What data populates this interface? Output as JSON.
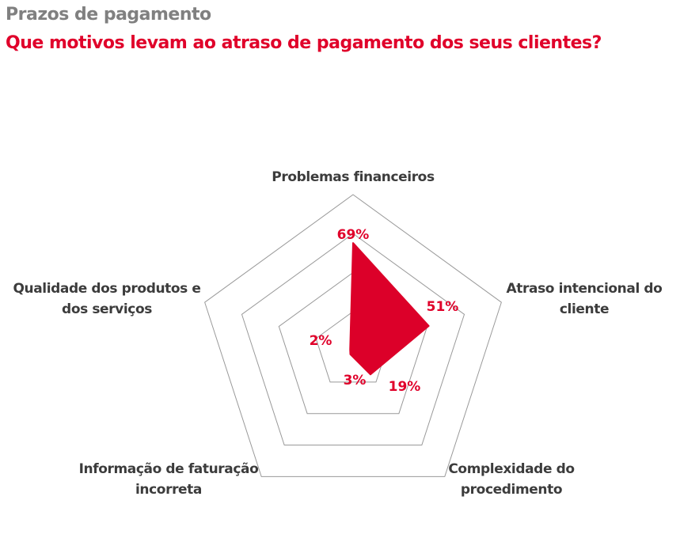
{
  "header": {
    "title": "Prazos de pagamento",
    "subtitle": "Que motivos levam ao atraso de pagamento dos seus clientes?"
  },
  "chart_data": {
    "type": "radar",
    "title": "Que motivos levam ao atraso de pagamento dos seus clientes?",
    "categories": [
      [
        "Problemas financeiros"
      ],
      [
        "Atraso intencional do",
        "cliente"
      ],
      [
        "Complexidade do",
        "procedimento"
      ],
      [
        "Informação de faturação",
        "incorreta"
      ],
      [
        "Qualidade dos produtos e",
        "dos serviços"
      ]
    ],
    "values": [
      69,
      51,
      19,
      3,
      2
    ],
    "value_labels": [
      "69%",
      "51%",
      "19%",
      "3%",
      "2%"
    ],
    "rlim": [
      0,
      100
    ],
    "rings": [
      25,
      50,
      75,
      100
    ],
    "colors": {
      "fill": "#dc0029",
      "grid": "#999999",
      "label": "#3c3c3c",
      "value": "#e0002a"
    }
  }
}
